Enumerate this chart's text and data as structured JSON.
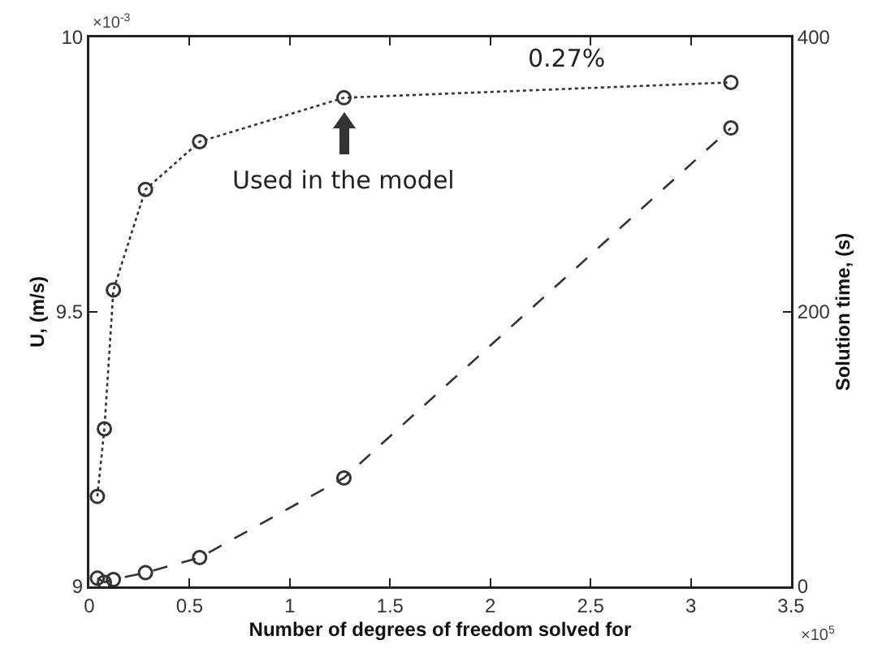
{
  "chart_data": {
    "type": "line",
    "xlabel": "Number of degrees of freedom solved for",
    "ylabel": "U, (m/s)",
    "y2label": "Solution time, (s)",
    "x": [
      0.04,
      0.075,
      0.12,
      0.28,
      0.55,
      1.27,
      3.2
    ],
    "series": [
      {
        "color": "#333333",
        "line_style": "dotted",
        "values": [
          9.164,
          9.287,
          9.54,
          9.723,
          9.81,
          9.89,
          9.918
        ]
      },
      {
        "color": "#333333",
        "line_style": "dashed",
        "axis": "y2",
        "values": [
          6,
          3,
          5,
          10,
          21,
          79,
          334
        ]
      }
    ],
    "xlim": [
      0,
      3.5
    ],
    "xticks": [
      0,
      0.5,
      1,
      1.5,
      2,
      2.5,
      3,
      3.5
    ],
    "ylim": [
      9,
      10
    ],
    "yticks": [
      9,
      9.5,
      10
    ],
    "y2lim": [
      0,
      400
    ],
    "y2ticks": [
      0,
      200,
      400
    ],
    "marker": "circle",
    "grid": false,
    "annotations": [
      {
        "text": "Used in the model",
        "x": 1.27,
        "y": 9.89
      },
      "0.27%",
      "×10$^{-3}$",
      "×10$^{5}$"
    ]
  }
}
